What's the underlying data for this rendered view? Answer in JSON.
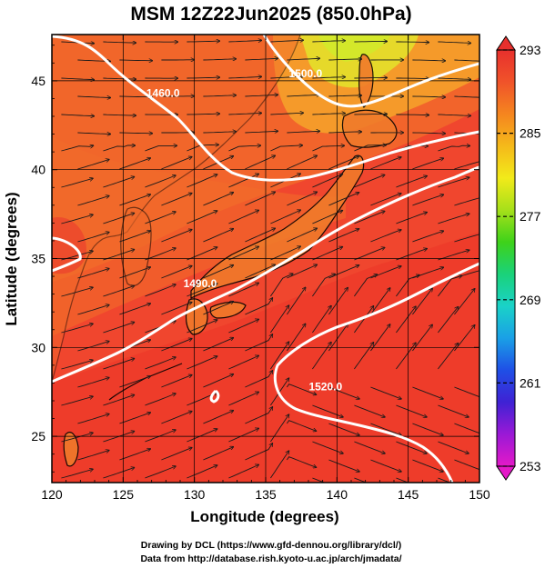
{
  "title": "MSM 12Z22Jun2025 (850.0hPa)",
  "xlabel": "Longitude (degrees)",
  "ylabel": "Latitude  (degrees)",
  "credits": [
    "Drawing by DCL (https://www.gfd-dennou.org/library/dcl/)",
    "Data from http://database.rish.kyoto-u.ac.jp/arch/jmadata/"
  ],
  "contour_labels": [
    "1460.0",
    "1500.0",
    "1490.0",
    "1520.0"
  ],
  "colors": {
    "field_base": "#f0462e",
    "warm": "#ee3a2a",
    "mid": "#f26a2a",
    "cool": "#f59a2a",
    "coolest": "#e6e62a",
    "streamline": "#1a1a1a",
    "contour": "#ffffff",
    "coast": "#000000"
  },
  "chart_data": {
    "type": "heatmap",
    "title": "MSM 12Z22Jun2025 (850.0hPa)",
    "xlabel": "Longitude (degrees)",
    "ylabel": "Latitude  (degrees)",
    "xlim": [
      120,
      150
    ],
    "ylim": [
      22.4,
      47.6
    ],
    "xticks": [
      120,
      125,
      130,
      135,
      140,
      145,
      150
    ],
    "yticks": [
      25,
      30,
      35,
      40,
      45
    ],
    "colorbar": {
      "range": [
        253,
        293
      ],
      "ticks": [
        253,
        261,
        269,
        277,
        285,
        293
      ],
      "stops": [
        "#e419c8",
        "#9a19d6",
        "#3f22d4",
        "#1f4fe6",
        "#1aa0e6",
        "#1ad2c8",
        "#1ad27a",
        "#3ed21a",
        "#a6e01a",
        "#f2ea1a",
        "#f5b91a",
        "#f5851f",
        "#f0532a",
        "#e8302d"
      ]
    },
    "contours": [
      {
        "label": "1460.0",
        "lon": 127.8,
        "lat": 44.1
      },
      {
        "label": "1500.0",
        "lon": 137.8,
        "lat": 45.2
      },
      {
        "label": "1490.0",
        "lon": 130.4,
        "lat": 33.4
      },
      {
        "label": "1520.0",
        "lon": 139.2,
        "lat": 27.6
      }
    ]
  }
}
